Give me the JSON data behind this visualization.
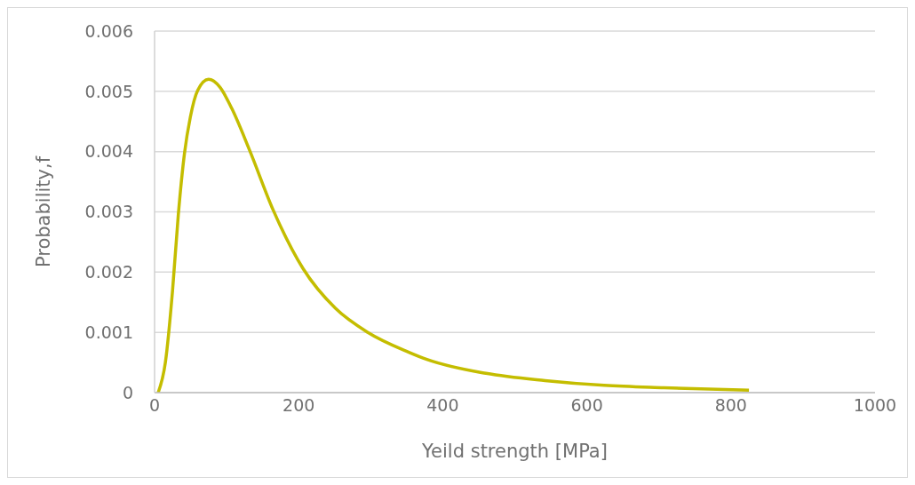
{
  "chart_data": {
    "type": "line",
    "xlabel": "Yeild strength [MPa]",
    "ylabel": "Probability,f",
    "x": [
      5,
      15,
      25,
      33,
      41.5,
      49.6,
      60,
      75,
      90.7,
      107,
      132,
      165,
      206,
      251,
      296,
      353,
      378,
      460,
      542,
      624,
      707,
      825
    ],
    "series": [
      {
        "color": "#c4bd00",
        "values": [
          0,
          0.0005,
          0.0017,
          0.00296,
          0.00397,
          0.00457,
          0.00502,
          0.0052,
          0.00507,
          0.00472,
          0.00402,
          0.00302,
          0.00206,
          0.0014,
          0.001,
          0.00067,
          0.00055,
          0.00032,
          0.0002,
          0.00012,
          8e-05,
          4e-05
        ]
      }
    ],
    "xlim": [
      0,
      1000
    ],
    "xticks": [
      0,
      200,
      400,
      600,
      800,
      1000
    ],
    "ylim": [
      0,
      0.006
    ],
    "yticks": [
      0,
      0.001,
      0.002,
      0.003,
      0.004,
      0.005,
      0.006
    ],
    "grid": "y",
    "legend": false,
    "marker": "none",
    "line_style": "solid"
  }
}
